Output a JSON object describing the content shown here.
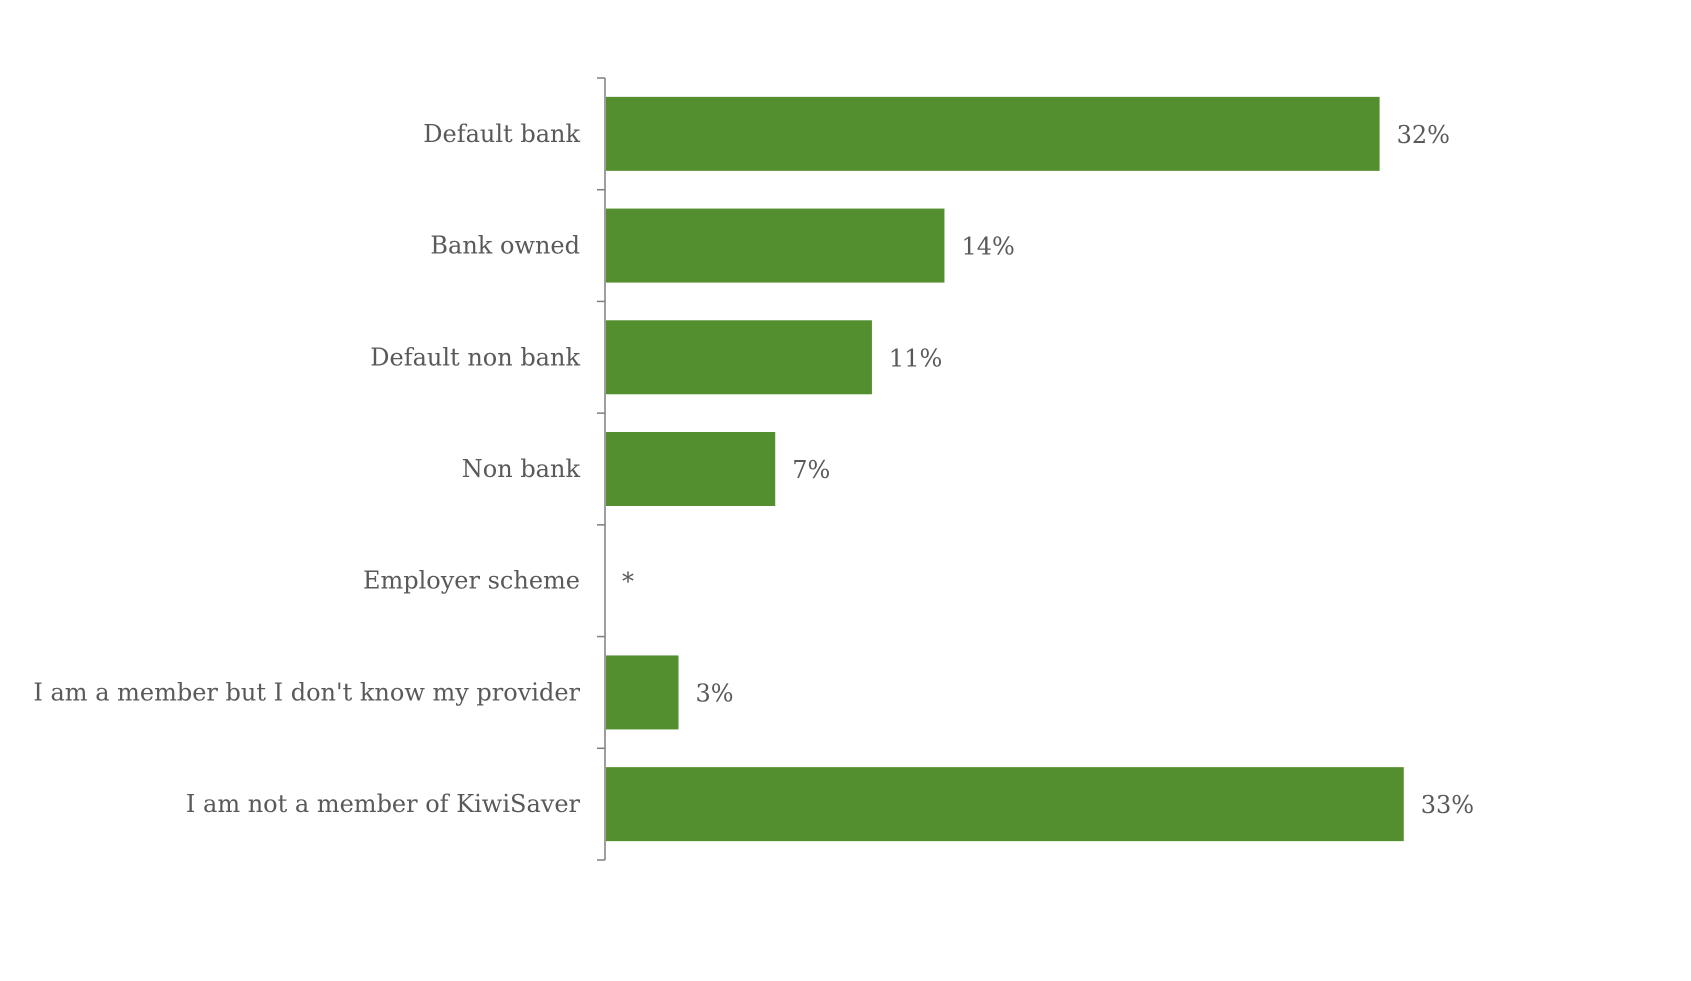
{
  "chart_data": {
    "type": "bar",
    "orientation": "horizontal",
    "categories": [
      "Default bank",
      "Bank owned",
      "Default non bank",
      "Non bank",
      "Employer scheme",
      "I am a member but I don't know my provider",
      "I am not a member of KiwiSaver"
    ],
    "values": [
      32,
      14,
      11,
      7,
      null,
      3,
      33
    ],
    "value_labels": [
      "32%",
      "14%",
      "11%",
      "7%",
      "*",
      "3%",
      "33%"
    ],
    "unit": "%",
    "xlim": [
      0,
      40
    ],
    "grid": false,
    "legend": "none",
    "colors": {
      "bar": "#548f2f",
      "axis": "#7f7f7f",
      "text": "#595959",
      "background": "#ffffff"
    }
  }
}
